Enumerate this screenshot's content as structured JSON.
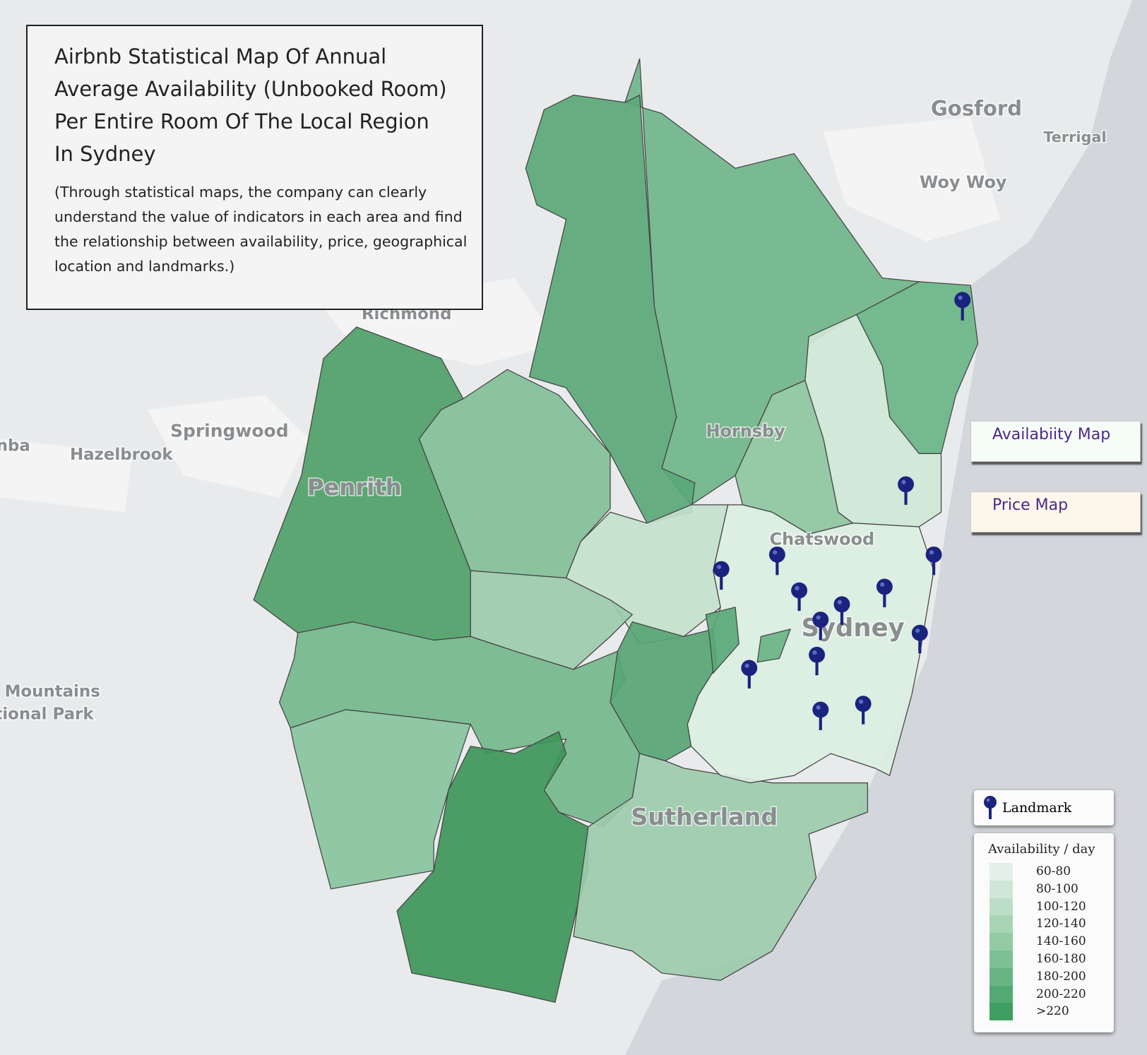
{
  "header": {
    "title": "Airbnb Statistical Map Of Annual Average Availability (Unbooked Room) Per Entire Room Of The Local Region In Sydney",
    "subtitle": "(Through statistical maps, the company can clearly understand the value of indicators in each area and find the relationship between availability, price, geographical location and landmarks.)"
  },
  "buttons": [
    "Availabiity Map",
    "Price Map"
  ],
  "legend": {
    "landmark": "Landmark",
    "title": "Availability / day",
    "bins": [
      {
        "label": "60-80",
        "color": "#e3f1e8"
      },
      {
        "label": "80-100",
        "color": "#cfe7d7"
      },
      {
        "label": "100-120",
        "color": "#bcdec7"
      },
      {
        "label": "120-140",
        "color": "#a8d5b6"
      },
      {
        "label": "140-160",
        "color": "#93cba5"
      },
      {
        "label": "160-180",
        "color": "#7ec094"
      },
      {
        "label": "180-200",
        "color": "#68b583"
      },
      {
        "label": "200-220",
        "color": "#52aa72"
      },
      {
        "label": ">220",
        "color": "#3f9e62"
      }
    ]
  },
  "places": [
    "Gosford",
    "Terrigal",
    "Woy Woy",
    "Richmond",
    "Springwood",
    "nba",
    "Hazelbrook",
    "Penrith",
    "Hornsby",
    "Chatswood",
    "Sydney",
    "Sutherland",
    "e Mountains",
    "tional Park"
  ]
}
